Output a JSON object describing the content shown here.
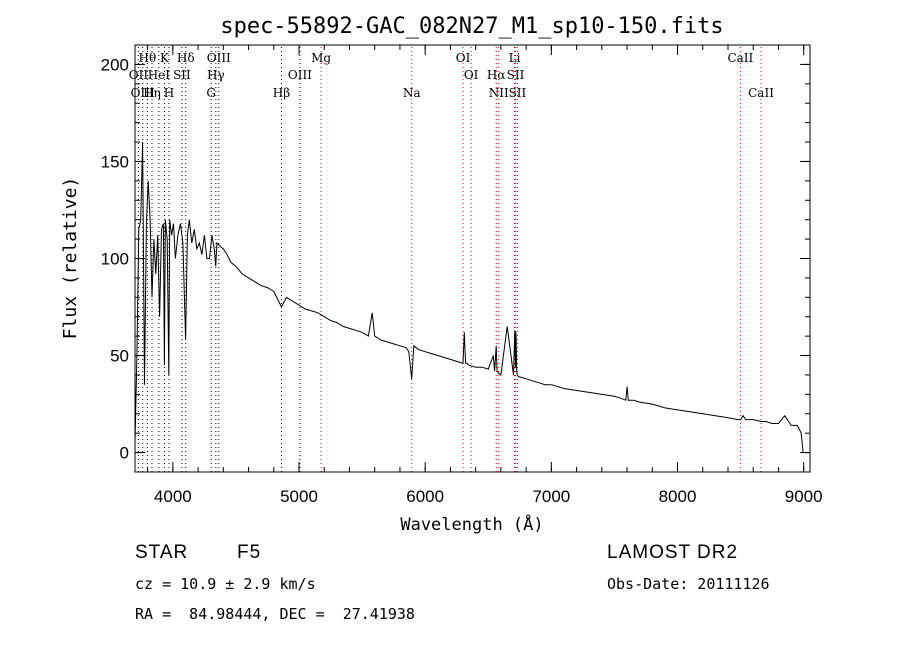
{
  "chart_data": {
    "type": "line",
    "title": "spec-55892-GAC_082N27_M1_sp10-150.fits",
    "xlabel": "Wavelength (Å)",
    "ylabel": "Flux (relative)",
    "xlim": [
      3700,
      9050
    ],
    "ylim": [
      -10,
      210
    ],
    "xticks": [
      4000,
      5000,
      6000,
      7000,
      8000,
      9000
    ],
    "yticks": [
      0,
      50,
      100,
      150,
      200
    ],
    "xminor_step": 200,
    "yminor_step": 10,
    "series": [
      {
        "name": "spectrum",
        "x": [
          3700,
          3715,
          3730,
          3745,
          3760,
          3775,
          3790,
          3805,
          3820,
          3835,
          3850,
          3865,
          3880,
          3895,
          3910,
          3925,
          3933,
          3940,
          3955,
          3968,
          3975,
          3990,
          4005,
          4020,
          4040,
          4060,
          4080,
          4101,
          4115,
          4130,
          4150,
          4170,
          4190,
          4210,
          4230,
          4250,
          4270,
          4290,
          4310,
          4330,
          4340,
          4350,
          4380,
          4400,
          4430,
          4460,
          4500,
          4550,
          4600,
          4650,
          4700,
          4750,
          4800,
          4861,
          4900,
          4950,
          5000,
          5050,
          5100,
          5150,
          5200,
          5250,
          5300,
          5350,
          5400,
          5450,
          5500,
          5550,
          5580,
          5600,
          5650,
          5700,
          5750,
          5800,
          5850,
          5870,
          5893,
          5910,
          5930,
          5950,
          6000,
          6050,
          6100,
          6150,
          6200,
          6250,
          6300,
          6310,
          6320,
          6330,
          6350,
          6400,
          6450,
          6500,
          6540,
          6550,
          6563,
          6570,
          6580,
          6600,
          6650,
          6700,
          6710,
          6715,
          6720,
          6725,
          6730,
          6740,
          6750,
          6800,
          6850,
          6900,
          6950,
          7000,
          7100,
          7200,
          7300,
          7400,
          7500,
          7550,
          7590,
          7600,
          7610,
          7650,
          7700,
          7800,
          7900,
          8000,
          8100,
          8200,
          8300,
          8400,
          8480,
          8500,
          8520,
          8540,
          8600,
          8662,
          8700,
          8750,
          8800,
          8850,
          8900,
          8950,
          8980,
          8995
        ],
        "y": [
          5,
          50,
          115,
          120,
          160,
          35,
          118,
          140,
          120,
          80,
          110,
          92,
          112,
          70,
          115,
          118,
          45,
          120,
          110,
          40,
          120,
          112,
          118,
          100,
          112,
          118,
          108,
          58,
          112,
          120,
          108,
          115,
          105,
          108,
          102,
          112,
          100,
          100,
          112,
          104,
          96,
          108,
          106,
          105,
          102,
          98,
          96,
          92,
          90,
          88,
          86,
          85,
          83,
          75,
          80,
          78,
          76,
          74,
          73,
          72,
          70,
          68,
          67,
          65,
          64,
          63,
          62,
          60,
          72,
          60,
          58,
          57,
          56,
          55,
          54,
          52,
          38,
          55,
          54,
          53,
          52,
          51,
          50,
          49,
          48,
          47,
          46,
          62,
          46,
          46,
          45,
          44,
          44,
          43,
          50,
          42,
          55,
          42,
          41,
          40,
          65,
          40,
          63,
          44,
          62,
          42,
          40,
          39,
          39,
          38,
          37,
          36,
          35,
          35,
          33,
          32,
          31,
          30,
          29,
          28,
          27,
          34,
          27,
          27,
          26,
          25,
          23,
          22,
          21,
          20,
          19,
          18,
          17,
          17,
          19,
          17,
          17,
          16,
          16,
          15,
          15,
          19,
          14,
          14,
          10,
          0
        ]
      }
    ],
    "lines": [
      {
        "label": "Hθ",
        "wave": 3798,
        "row": 0,
        "color": "#000000"
      },
      {
        "label": "K",
        "wave": 3934,
        "row": 0,
        "color": "#000000"
      },
      {
        "label": "Hδ",
        "wave": 4102,
        "row": 0,
        "color": "#000000"
      },
      {
        "label": "OIII",
        "wave": 4364,
        "row": 0,
        "color": "#000000"
      },
      {
        "label": "Mg",
        "wave": 5175,
        "row": 0,
        "color": "#e00000"
      },
      {
        "label": "OI",
        "wave": 6300,
        "row": 0,
        "color": "#e00000"
      },
      {
        "label": "Li",
        "wave": 6708,
        "row": 0,
        "color": "#e00000"
      },
      {
        "label": "CaII",
        "wave": 8498,
        "row": 0,
        "color": "#e00000"
      },
      {
        "label": "OII",
        "wave": 3727,
        "row": 1,
        "color": "#000000"
      },
      {
        "label": "HeI",
        "wave": 3889,
        "row": 1,
        "color": "#000000"
      },
      {
        "label": "SII",
        "wave": 4072,
        "row": 1,
        "color": "#000000"
      },
      {
        "label": "Hγ",
        "wave": 4341,
        "row": 1,
        "color": "#000000"
      },
      {
        "label": "OIII",
        "wave": 5007,
        "row": 1,
        "color": "#000000"
      },
      {
        "label": "OI",
        "wave": 6364,
        "row": 1,
        "color": "#e00000"
      },
      {
        "label": "Hα",
        "wave": 6563,
        "row": 1,
        "color": "#e00000"
      },
      {
        "label": "SII",
        "wave": 6716,
        "row": 1,
        "color": "#e00000"
      },
      {
        "label": "OIII",
        "wave": 3761,
        "row": 2,
        "color": "#000000"
      },
      {
        "label": "Hη",
        "wave": 3835,
        "row": 2,
        "color": "#000000"
      },
      {
        "label": "H",
        "wave": 3969,
        "row": 2,
        "color": "#000000"
      },
      {
        "label": "G",
        "wave": 4304,
        "row": 2,
        "color": "#000000"
      },
      {
        "label": "Hβ",
        "wave": 4861,
        "row": 2,
        "color": "#000000"
      },
      {
        "label": "Na",
        "wave": 5893,
        "row": 2,
        "color": "#e00000"
      },
      {
        "label": "NII",
        "wave": 6583,
        "row": 2,
        "color": "#e00000"
      },
      {
        "label": "SII",
        "wave": 6731,
        "row": 2,
        "color": "#e00000"
      },
      {
        "label": "CaII",
        "wave": 8662,
        "row": 2,
        "color": "#e00000"
      }
    ]
  },
  "info": {
    "class_label": "STAR",
    "subclass": "F5",
    "survey": "LAMOST DR2",
    "cz": "cz = 10.9 ± 2.9 km/s",
    "obs_date": "Obs-Date: 20111126",
    "radec": "RA =  84.98444, DEC =  27.41938"
  }
}
